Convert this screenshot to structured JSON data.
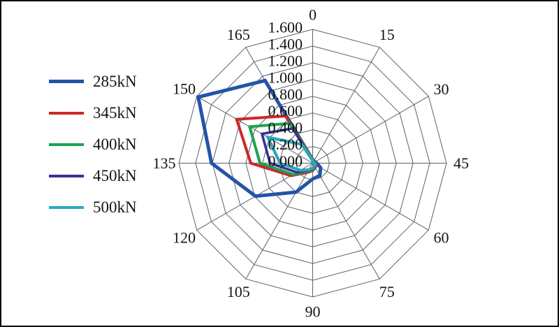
{
  "chart_data": {
    "type": "radar",
    "title": "",
    "angle_step_deg": 30,
    "angle_labels": [
      "0",
      "15",
      "30",
      "45",
      "60",
      "75",
      "90",
      "105",
      "120",
      "135",
      "150",
      "165"
    ],
    "radial_tick_labels": [
      "0.000",
      "0.200",
      "0.400",
      "0.600",
      "0.800",
      "1.000",
      "1.200",
      "1.400",
      "1.600"
    ],
    "rmax": 1.6,
    "ring_step": 0.2,
    "grid": true,
    "grid_color": "#59616b",
    "text_color": "#131313",
    "background_color": "#ffffff",
    "frame_color": "#0e0e0e",
    "legend_position": "left",
    "categories": [
      0,
      15,
      30,
      45,
      60,
      75,
      90,
      105,
      120,
      135,
      150,
      165
    ],
    "series": [
      {
        "name": "285kN",
        "color": "#2454A6",
        "width": 5,
        "values": [
          0.04,
          0.03,
          0.03,
          0.05,
          0.11,
          0.17,
          0.19,
          0.4,
          0.79,
          1.21,
          1.58,
          1.14
        ]
      },
      {
        "name": "345kN",
        "color": "#CB2828",
        "width": 4,
        "values": [
          0.05,
          0.02,
          0.02,
          0.03,
          0.05,
          0.06,
          0.09,
          0.13,
          0.3,
          0.74,
          1.05,
          0.65
        ]
      },
      {
        "name": "400kN",
        "color": "#1CA251",
        "width": 4,
        "values": [
          0.04,
          0.02,
          0.02,
          0.03,
          0.04,
          0.05,
          0.08,
          0.11,
          0.27,
          0.63,
          0.87,
          0.55
        ]
      },
      {
        "name": "450kN",
        "color": "#3A3193",
        "width": 3.6,
        "values": [
          0.03,
          0.01,
          0.01,
          0.02,
          0.03,
          0.05,
          0.07,
          0.1,
          0.22,
          0.51,
          0.7,
          0.48
        ]
      },
      {
        "name": "500kN",
        "color": "#2AA7BC",
        "width": 4.2,
        "values": [
          0.03,
          0.01,
          0.01,
          0.02,
          0.03,
          0.04,
          0.06,
          0.09,
          0.17,
          0.39,
          0.62,
          0.26
        ]
      }
    ]
  }
}
